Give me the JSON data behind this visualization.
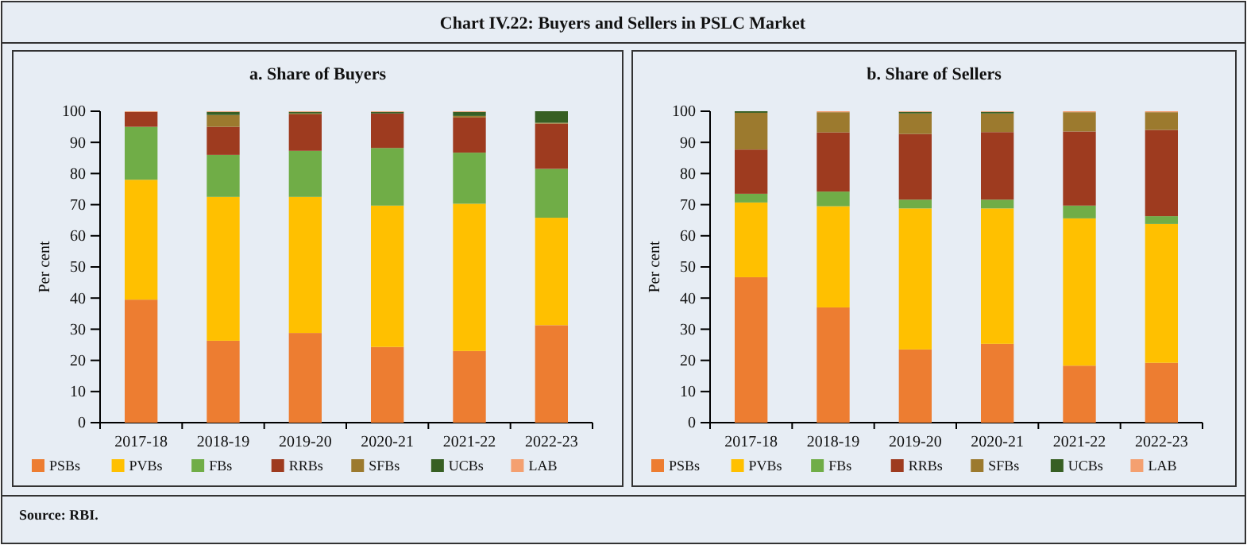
{
  "chart_data": [
    {
      "type": "bar",
      "stacked": true,
      "title": "a. Share of Buyers",
      "ylabel": "Per cent",
      "legend": "bottom",
      "annotations": [
        "Chart IV.22: Buyers and Sellers in PSLC Market",
        "Source: RBI."
      ],
      "categories": [
        "2017-18",
        "2018-19",
        "2019-20",
        "2020-21",
        "2021-22",
        "2022-23"
      ],
      "ylim": [
        0,
        100
      ],
      "yticks": [
        0,
        10,
        20,
        30,
        40,
        50,
        60,
        70,
        80,
        90,
        100
      ],
      "series": [
        {
          "name": "PSBs",
          "color": "#ed7d31",
          "values": [
            39.5,
            26.3,
            28.8,
            24.3,
            23,
            31.3
          ]
        },
        {
          "name": "PVBs",
          "color": "#ffc000",
          "values": [
            38.5,
            46.2,
            43.7,
            45.4,
            47.3,
            34.5
          ]
        },
        {
          "name": "FBs",
          "color": "#70ad47",
          "values": [
            17,
            13.5,
            14.8,
            18.5,
            16.4,
            15.7
          ]
        },
        {
          "name": "RRBs",
          "color": "#9e3b1f",
          "values": [
            4.8,
            9,
            11.7,
            11.1,
            11.3,
            14.5
          ]
        },
        {
          "name": "SFBs",
          "color": "#9c7a2e",
          "values": [
            0,
            3.8,
            0.3,
            0,
            0.5,
            0.3
          ]
        },
        {
          "name": "UCBs",
          "color": "#375f23",
          "values": [
            0,
            1,
            0.5,
            0.5,
            1.3,
            3.7
          ]
        },
        {
          "name": "LAB",
          "color": "#f4a070",
          "values": [
            0.2,
            0.2,
            0.2,
            0.2,
            0.2,
            0
          ]
        }
      ]
    },
    {
      "type": "bar",
      "stacked": true,
      "title": "b. Share of Sellers",
      "ylabel": "Per cent",
      "legend": "bottom",
      "categories": [
        "2017-18",
        "2018-19",
        "2019-20",
        "2020-21",
        "2021-22",
        "2022-23"
      ],
      "ylim": [
        0,
        100
      ],
      "yticks": [
        0,
        10,
        20,
        30,
        40,
        50,
        60,
        70,
        80,
        90,
        100
      ],
      "series": [
        {
          "name": "PSBs",
          "color": "#ed7d31",
          "values": [
            46.7,
            37,
            23.5,
            25.3,
            18.3,
            19.2
          ]
        },
        {
          "name": "PVBs",
          "color": "#ffc000",
          "values": [
            24,
            32.5,
            45.3,
            43.5,
            47.3,
            44.6
          ]
        },
        {
          "name": "FBs",
          "color": "#70ad47",
          "values": [
            2.8,
            4.7,
            2.8,
            2.8,
            4.1,
            2.5
          ]
        },
        {
          "name": "RRBs",
          "color": "#9e3b1f",
          "values": [
            14.2,
            19,
            21.1,
            21.7,
            23.8,
            27.7
          ]
        },
        {
          "name": "SFBs",
          "color": "#9c7a2e",
          "values": [
            11.8,
            6.5,
            6.6,
            6,
            6.2,
            5.7
          ]
        },
        {
          "name": "UCBs",
          "color": "#375f23",
          "values": [
            0.5,
            0,
            0.5,
            0.5,
            0,
            0
          ]
        },
        {
          "name": "LAB",
          "color": "#f4a070",
          "values": [
            0,
            0.3,
            0.2,
            0.2,
            0.3,
            0.3
          ]
        }
      ]
    }
  ]
}
